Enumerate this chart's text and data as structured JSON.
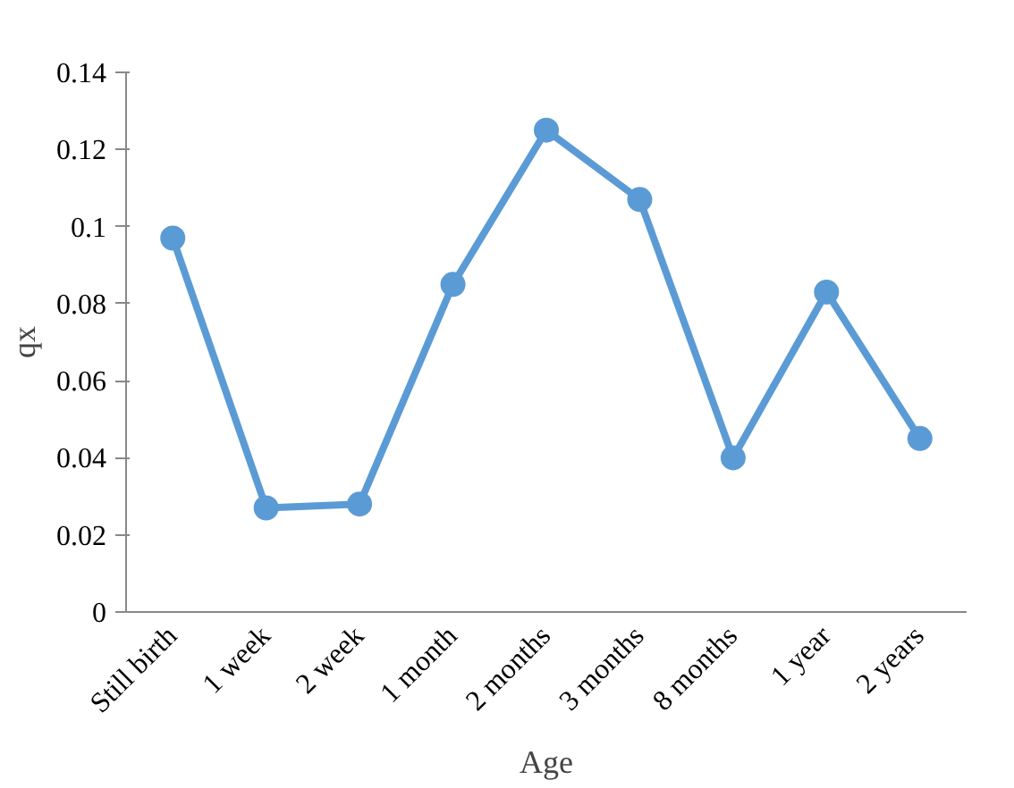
{
  "chart_data": {
    "type": "line",
    "xlabel": "Age",
    "ylabel": "qx",
    "categories": [
      "Still birth",
      "1 week",
      "2 week",
      "1 month",
      "2 months",
      "3 months",
      "8 months",
      "1 year",
      "2 years"
    ],
    "series": [
      {
        "color": "#5b9bd5",
        "values": [
          0.097,
          0.027,
          0.028,
          0.085,
          0.125,
          0.107,
          0.04,
          0.083,
          0.045
        ]
      }
    ],
    "ylim": [
      0,
      0.14
    ],
    "yticks": [
      0,
      0.02,
      0.04,
      0.06,
      0.08,
      0.1,
      0.12,
      0.14
    ],
    "grid": false,
    "marker": "circle",
    "line_style": "solid"
  }
}
